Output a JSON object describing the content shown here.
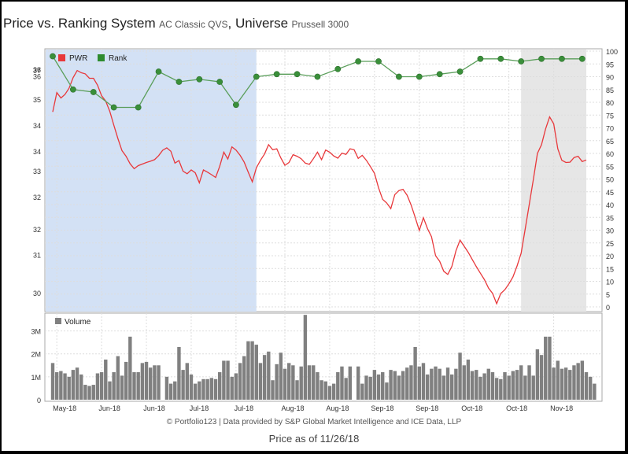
{
  "header": {
    "title_main": "Price vs. Ranking System",
    "ranking_system": "AC Classic QVS",
    "universe_label": "Universe",
    "universe_name": "Prussell 3000"
  },
  "footer": {
    "credit": "© Portfolio123 | Data provided by S&P Global Market Intelligence and ICE Data, LLP",
    "price_as_of": "Price as of 11/26/18"
  },
  "colors": {
    "price": "#e8383b",
    "rank": "#2e8b2e",
    "rank_marker": "#3a8f3a",
    "volume": "#808080",
    "shade_blue": "#d3e1f5",
    "shade_gray": "#e6e6e6"
  },
  "chart_data": {
    "type": "line",
    "legend": [
      {
        "name": "PWR",
        "color": "#e8383b"
      },
      {
        "name": "Rank",
        "color": "#2e8b2e"
      }
    ],
    "volume_legend": "Volume",
    "x_labels": [
      "May-18",
      "Jun-18",
      "Jun-18",
      "Jul-18",
      "Jul-18",
      "Aug-18",
      "Aug-18",
      "Sep-18",
      "Sep-18",
      "Oct-18",
      "Oct-18",
      "Nov-18"
    ],
    "left_axis_ticks": [
      "37",
      "37",
      "36",
      "36",
      "35",
      "34",
      "34",
      "33",
      "32",
      "32",
      "31",
      "30"
    ],
    "right_axis_ticks": [
      100,
      95,
      90,
      85,
      80,
      75,
      70,
      65,
      60,
      55,
      50,
      45,
      40,
      35,
      30,
      25,
      20,
      15,
      10,
      5,
      0
    ],
    "right_ylim": [
      0,
      100
    ],
    "volume_ticks": [
      "0",
      "1M",
      "2M",
      "3M"
    ],
    "volume_ylim": [
      0,
      3.5
    ],
    "n_days": 132,
    "highlight_ranges": [
      {
        "from_day": 0,
        "to_day": 50,
        "color": "blue"
      },
      {
        "from_day": 115,
        "to_day": 131,
        "color": "gray"
      }
    ],
    "price_scale_positions": [
      0.927,
      0.928,
      0.929,
      0.903,
      0.812,
      0.711,
      0.609,
      0.533,
      0.431,
      0.305,
      0.204,
      0.056
    ],
    "price_series": [
      35.85,
      36.47,
      36.3,
      36.41,
      36.61,
      36.95,
      37.18,
      37.11,
      37.07,
      36.93,
      36.93,
      36.71,
      36.37,
      36.2,
      35.87,
      35.43,
      35.0,
      34.61,
      34.43,
      34.19,
      34.03,
      34.13,
      34.18,
      34.23,
      34.27,
      34.32,
      34.45,
      34.62,
      34.7,
      34.59,
      34.21,
      34.29,
      33.95,
      33.87,
      33.99,
      33.9,
      33.58,
      33.99,
      33.92,
      33.84,
      33.75,
      34.11,
      34.56,
      34.34,
      34.73,
      34.63,
      34.46,
      34.24,
      33.92,
      33.61,
      34.06,
      34.3,
      34.5,
      34.8,
      34.64,
      34.67,
      34.38,
      34.14,
      34.23,
      34.48,
      34.43,
      34.35,
      34.21,
      34.17,
      34.35,
      34.56,
      34.32,
      34.63,
      34.56,
      34.44,
      34.37,
      34.53,
      34.49,
      34.67,
      34.64,
      34.36,
      34.46,
      34.3,
      34.1,
      33.88,
      33.42,
      33.05,
      32.93,
      32.75,
      33.2,
      33.33,
      33.37,
      33.18,
      32.86,
      32.47,
      32.05,
      32.46,
      32.11,
      31.85,
      31.24,
      31.06,
      30.74,
      30.64,
      30.9,
      31.4,
      31.74,
      31.55,
      31.35,
      31.12,
      30.89,
      30.68,
      30.47,
      30.2,
      30.03,
      29.7,
      30.03,
      30.15,
      30.34,
      30.56,
      30.91,
      31.32,
      32.1,
      32.88,
      33.68,
      34.52,
      34.8,
      35.3,
      35.69,
      35.47,
      34.67,
      34.3,
      34.23,
      34.24,
      34.39,
      34.43,
      34.26,
      34.31
    ],
    "rank_series": [
      {
        "day": 0,
        "value": 98
      },
      {
        "day": 5,
        "value": 85
      },
      {
        "day": 10,
        "value": 84
      },
      {
        "day": 15,
        "value": 78
      },
      {
        "day": 21,
        "value": 78
      },
      {
        "day": 26,
        "value": 92
      },
      {
        "day": 31,
        "value": 88
      },
      {
        "day": 36,
        "value": 89
      },
      {
        "day": 41,
        "value": 88
      },
      {
        "day": 45,
        "value": 79
      },
      {
        "day": 50,
        "value": 90
      },
      {
        "day": 55,
        "value": 91
      },
      {
        "day": 60,
        "value": 91
      },
      {
        "day": 65,
        "value": 90
      },
      {
        "day": 70,
        "value": 93
      },
      {
        "day": 75,
        "value": 96
      },
      {
        "day": 80,
        "value": 96
      },
      {
        "day": 85,
        "value": 90
      },
      {
        "day": 90,
        "value": 90
      },
      {
        "day": 95,
        "value": 91
      },
      {
        "day": 100,
        "value": 92
      },
      {
        "day": 105,
        "value": 97
      },
      {
        "day": 110,
        "value": 97
      },
      {
        "day": 115,
        "value": 96
      },
      {
        "day": 120,
        "value": 97
      },
      {
        "day": 125,
        "value": 97
      },
      {
        "day": 130,
        "value": 97
      }
    ],
    "volume_millions": [
      1.6,
      1.2,
      1.25,
      1.15,
      1.0,
      1.3,
      1.4,
      1.1,
      0.65,
      0.6,
      0.65,
      1.15,
      1.2,
      1.75,
      0.8,
      1.2,
      1.9,
      1.05,
      1.65,
      2.75,
      1.2,
      1.2,
      1.6,
      1.65,
      1.4,
      1.5,
      1.5,
      0,
      1.0,
      0.7,
      0.8,
      2.3,
      1.3,
      1.6,
      1.1,
      0.7,
      0.8,
      0.9,
      0.9,
      0.95,
      0.9,
      1.2,
      1.7,
      1.7,
      1.0,
      1.15,
      1.6,
      1.9,
      2.55,
      2.55,
      2.4,
      1.6,
      1.95,
      2.1,
      0.85,
      1.55,
      2.05,
      1.35,
      1.6,
      1.5,
      0.85,
      1.45,
      3.7,
      1.5,
      1.5,
      1.2,
      0.85,
      0.8,
      0.6,
      0.7,
      1.2,
      1.45,
      0.95,
      1.45,
      0,
      1.45,
      0.7,
      1.05,
      1.0,
      1.3,
      1.1,
      1.2,
      0.75,
      1.3,
      1.25,
      1.05,
      1.25,
      1.4,
      1.5,
      2.3,
      1.45,
      1.6,
      1.1,
      1.35,
      1.45,
      1.35,
      1.05,
      1.4,
      1.1,
      1.35,
      2.05,
      1.5,
      1.75,
      1.25,
      1.3,
      1.0,
      1.15,
      1.35,
      1.2,
      0.95,
      0.9,
      1.2,
      1.05,
      1.25,
      1.3,
      1.5,
      1.05,
      1.5,
      1.05,
      2.2,
      1.95,
      2.75,
      2.75,
      1.4,
      1.7,
      1.35,
      1.4,
      1.3,
      1.5,
      1.6,
      1.7,
      1.2,
      1.0,
      0.7
    ]
  }
}
